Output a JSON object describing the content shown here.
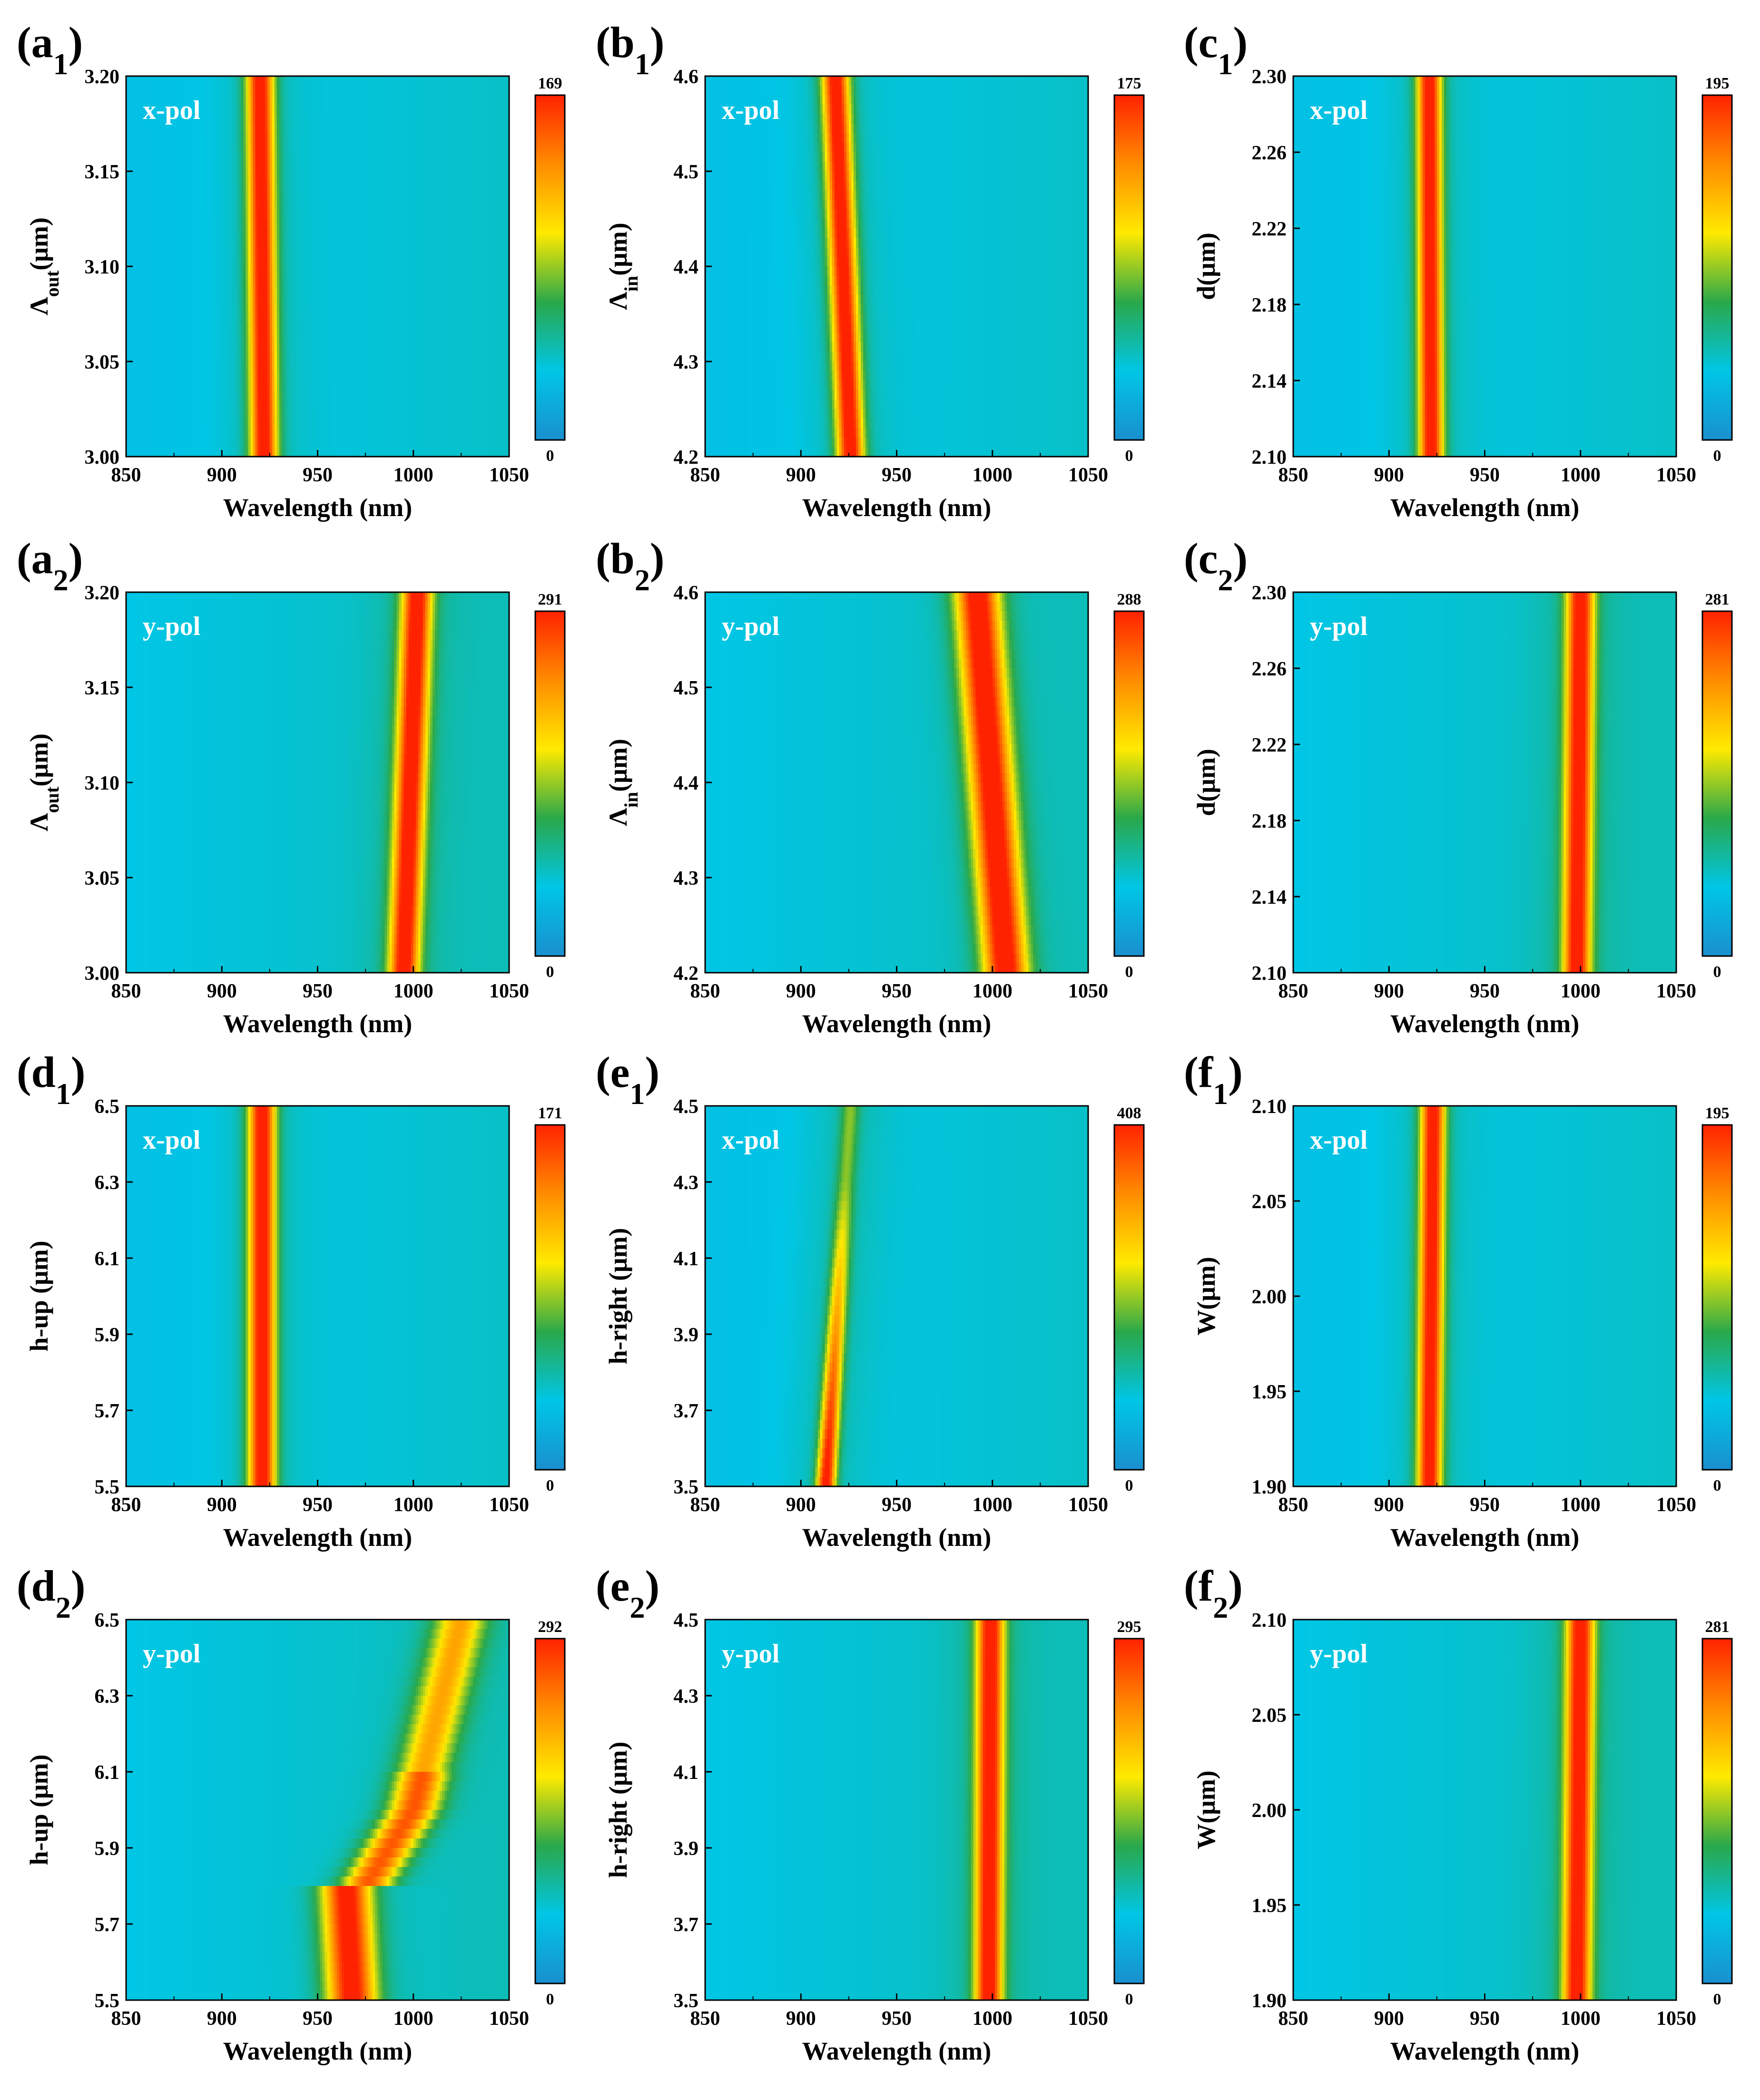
{
  "figure": {
    "colors": {
      "stops": [
        "#1a8fcf",
        "#00c6e6",
        "#2aa84a",
        "#ffea00",
        "#ff8c00",
        "#ff2200"
      ],
      "background": "#1e97d5",
      "text": "#000000",
      "overlay_text": "#ffffff"
    },
    "xlabel": "Wavelength (nm)",
    "xticks": [
      "850",
      "900",
      "950",
      "1000",
      "1050"
    ],
    "cmin_label": "0"
  },
  "chart_data": [
    {
      "id": "a1",
      "panel_letter": "a",
      "panel_sub": "1",
      "type": "heatmap",
      "pol": "x-pol",
      "ylabel_main": "Λ",
      "ylabel_sub": "out",
      "ylabel_unit": "(μm)",
      "yticks": [
        "3.00",
        "3.05",
        "3.10",
        "3.15",
        "3.20"
      ],
      "ylim": [
        3.0,
        3.2
      ],
      "xlim": [
        850,
        1050
      ],
      "cmax": 169,
      "cmax_label": "169",
      "peak_bottom_nm": 922,
      "peak_top_nm": 920,
      "peak_width_nm": 5.0,
      "baseline": 0.18
    },
    {
      "id": "b1",
      "panel_letter": "b",
      "panel_sub": "1",
      "type": "heatmap",
      "pol": "x-pol",
      "ylabel_main": "Λ",
      "ylabel_sub": "in",
      "ylabel_unit": "(μm)",
      "yticks": [
        "4.2",
        "4.3",
        "4.4",
        "4.5",
        "4.6"
      ],
      "ylim": [
        4.2,
        4.6
      ],
      "xlim": [
        850,
        1050
      ],
      "cmax": 175,
      "cmax_label": "175",
      "peak_bottom_nm": 926,
      "peak_top_nm": 918,
      "peak_width_nm": 5.0,
      "baseline": 0.18
    },
    {
      "id": "c1",
      "panel_letter": "c",
      "panel_sub": "1",
      "type": "heatmap",
      "pol": "x-pol",
      "ylabel_main": "d",
      "ylabel_sub": "",
      "ylabel_unit": "(μm)",
      "yticks": [
        "2.10",
        "2.14",
        "2.18",
        "2.22",
        "2.26",
        "2.30"
      ],
      "ylim": [
        2.1,
        2.3
      ],
      "xlim": [
        850,
        1050
      ],
      "cmax": 195,
      "cmax_label": "195",
      "peak_bottom_nm": 922,
      "peak_top_nm": 921,
      "peak_width_nm": 4.5,
      "baseline": 0.18
    },
    {
      "id": "a2",
      "panel_letter": "a",
      "panel_sub": "2",
      "type": "heatmap",
      "pol": "y-pol",
      "ylabel_main": "Λ",
      "ylabel_sub": "out",
      "ylabel_unit": "(μm)",
      "yticks": [
        "3.00",
        "3.05",
        "3.10",
        "3.15",
        "3.20"
      ],
      "ylim": [
        3.0,
        3.2
      ],
      "xlim": [
        850,
        1050
      ],
      "cmax": 291,
      "cmax_label": "291",
      "peak_bottom_nm": 995,
      "peak_top_nm": 1002,
      "peak_width_nm": 5.5,
      "baseline": 0.2
    },
    {
      "id": "b2",
      "panel_letter": "b",
      "panel_sub": "2",
      "type": "heatmap",
      "pol": "y-pol",
      "ylabel_main": "Λ",
      "ylabel_sub": "in",
      "ylabel_unit": "(μm)",
      "yticks": [
        "4.2",
        "4.3",
        "4.4",
        "4.5",
        "4.6"
      ],
      "ylim": [
        4.2,
        4.6
      ],
      "xlim": [
        850,
        1050
      ],
      "cmax": 288,
      "cmax_label": "288",
      "peak_bottom_nm": 1007,
      "peak_top_nm": 992,
      "peak_width_nm": 8.0,
      "baseline": 0.2
    },
    {
      "id": "c2",
      "panel_letter": "c",
      "panel_sub": "2",
      "type": "heatmap",
      "pol": "y-pol",
      "ylabel_main": "d",
      "ylabel_sub": "",
      "ylabel_unit": "(μm)",
      "yticks": [
        "2.10",
        "2.14",
        "2.18",
        "2.22",
        "2.26",
        "2.30"
      ],
      "ylim": [
        2.1,
        2.3
      ],
      "xlim": [
        850,
        1050
      ],
      "cmax": 281,
      "cmax_label": "281",
      "peak_bottom_nm": 998,
      "peak_top_nm": 1000,
      "peak_width_nm": 5.0,
      "baseline": 0.2
    },
    {
      "id": "d1",
      "panel_letter": "d",
      "panel_sub": "1",
      "type": "heatmap",
      "pol": "x-pol",
      "ylabel_main": "h-up (μm)",
      "ylabel_sub": "",
      "ylabel_unit": "",
      "yticks": [
        "5.5",
        "5.7",
        "5.9",
        "6.1",
        "6.3",
        "6.5"
      ],
      "ylim": [
        5.5,
        6.5
      ],
      "xlim": [
        850,
        1050
      ],
      "cmax": 171,
      "cmax_label": "171",
      "peak_bottom_nm": 921,
      "peak_top_nm": 921,
      "peak_width_nm": 5.0,
      "baseline": 0.18
    },
    {
      "id": "e1",
      "panel_letter": "e",
      "panel_sub": "1",
      "type": "heatmap",
      "pol": "x-pol",
      "ylabel_main": "h-right (μm)",
      "ylabel_sub": "",
      "ylabel_unit": "",
      "yticks": [
        "3.5",
        "3.7",
        "3.9",
        "4.1",
        "4.3",
        "4.5"
      ],
      "ylim": [
        3.5,
        4.5
      ],
      "xlim": [
        850,
        1050
      ],
      "cmax": 408,
      "cmax_label": "408",
      "peak_bottom_nm": 913,
      "peak_top_nm": 926,
      "peak_width_nm": 3.5,
      "baseline": 0.18,
      "fade": true
    },
    {
      "id": "f1",
      "panel_letter": "f",
      "panel_sub": "1",
      "type": "heatmap",
      "pol": "x-pol",
      "ylabel_main": "W(μm)",
      "ylabel_sub": "",
      "ylabel_unit": "",
      "yticks": [
        "1.90",
        "1.95",
        "2.00",
        "2.05",
        "2.10"
      ],
      "ylim": [
        1.9,
        2.1
      ],
      "xlim": [
        850,
        1050
      ],
      "cmax": 195,
      "cmax_label": "195",
      "peak_bottom_nm": 921,
      "peak_top_nm": 923,
      "peak_width_nm": 4.5,
      "baseline": 0.18
    },
    {
      "id": "d2",
      "panel_letter": "d",
      "panel_sub": "2",
      "type": "heatmap",
      "pol": "y-pol",
      "ylabel_main": "h-up (μm)",
      "ylabel_sub": "",
      "ylabel_unit": "",
      "yticks": [
        "5.5",
        "5.7",
        "5.9",
        "6.1",
        "6.3",
        "6.5"
      ],
      "ylim": [
        5.5,
        6.5
      ],
      "xlim": [
        850,
        1050
      ],
      "cmax": 292,
      "cmax_label": "292",
      "peak_bottom_nm": 968,
      "peak_top_nm": 1025,
      "peak_width_nm": 8.0,
      "baseline": 0.2,
      "wavy": true
    },
    {
      "id": "e2",
      "panel_letter": "e",
      "panel_sub": "2",
      "type": "heatmap",
      "pol": "y-pol",
      "ylabel_main": "h-right (μm)",
      "ylabel_sub": "",
      "ylabel_unit": "",
      "yticks": [
        "3.5",
        "3.7",
        "3.9",
        "4.1",
        "4.3",
        "4.5"
      ],
      "ylim": [
        3.5,
        4.5
      ],
      "xlim": [
        850,
        1050
      ],
      "cmax": 295,
      "cmax_label": "295",
      "peak_bottom_nm": 998,
      "peak_top_nm": 999,
      "peak_width_nm": 5.0,
      "baseline": 0.2
    },
    {
      "id": "f2",
      "panel_letter": "f",
      "panel_sub": "2",
      "type": "heatmap",
      "pol": "y-pol",
      "ylabel_main": "W(μm)",
      "ylabel_sub": "",
      "ylabel_unit": "",
      "yticks": [
        "1.90",
        "1.95",
        "2.00",
        "2.05",
        "2.10"
      ],
      "ylim": [
        1.9,
        2.1
      ],
      "xlim": [
        850,
        1050
      ],
      "cmax": 281,
      "cmax_label": "281",
      "peak_bottom_nm": 998,
      "peak_top_nm": 1000,
      "peak_width_nm": 5.0,
      "baseline": 0.2
    }
  ]
}
